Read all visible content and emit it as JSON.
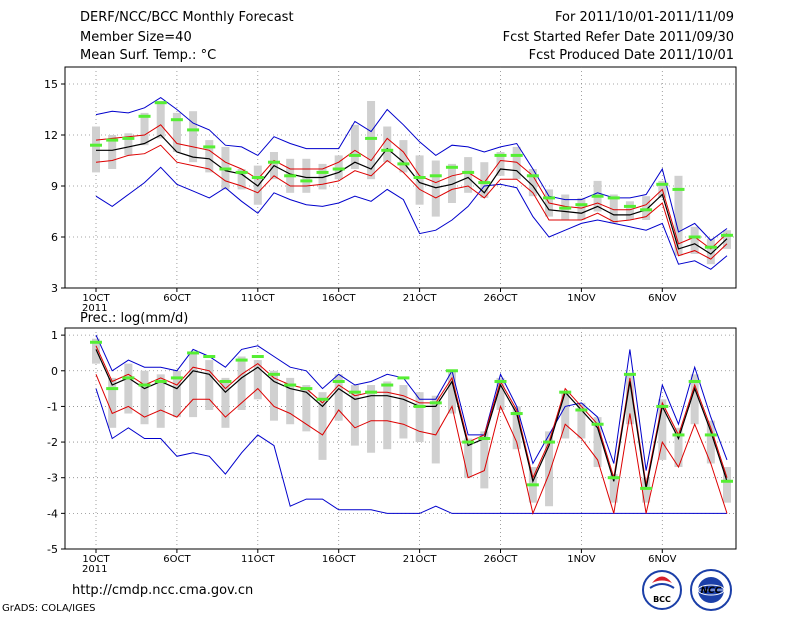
{
  "header": {
    "title": "DERF/NCC/BCC Monthly Forecast",
    "member_size": "Member Size=40",
    "variable": "Mean Surf. Temp.: °C",
    "period": "For 2011/10/01-2011/11/09",
    "started": "Fcst Started Refer Date 2011/09/30",
    "produced": "Fcst Produced Date 2011/10/01"
  },
  "footer": {
    "url": "http://cmdp.ncc.cma.gov.cn",
    "grads": "GrADS: COLA/IGES",
    "bcc_logo": "BCC",
    "ncc_logo": "NCC"
  },
  "colors": {
    "box": "#d0d0d0",
    "median": "#55ee33",
    "envelope": "#0000cc",
    "band": "#dd0000",
    "mean": "#000000"
  },
  "chart_data": [
    {
      "type": "line",
      "name": "temperature",
      "title": "",
      "ylabel": "Mean Surf. Temp.: °C",
      "ylim": [
        3,
        16
      ],
      "yticks": [
        3,
        6,
        9,
        12,
        15
      ],
      "x_days": [
        1,
        2,
        3,
        4,
        5,
        6,
        7,
        8,
        9,
        10,
        11,
        12,
        13,
        14,
        15,
        16,
        17,
        18,
        19,
        20,
        21,
        22,
        23,
        24,
        25,
        26,
        27,
        28,
        29,
        30,
        31,
        32,
        33,
        34,
        35,
        36,
        37,
        38,
        39,
        40
      ],
      "xticks": [
        {
          "day": 1,
          "label": "1OCT",
          "sub": "2011"
        },
        {
          "day": 6,
          "label": "6OCT"
        },
        {
          "day": 11,
          "label": "11OCT"
        },
        {
          "day": 16,
          "label": "16OCT"
        },
        {
          "day": 21,
          "label": "21OCT"
        },
        {
          "day": 26,
          "label": "26OCT"
        },
        {
          "day": 31,
          "label": "1NOV"
        },
        {
          "day": 36,
          "label": "6NOV"
        }
      ],
      "series": [
        {
          "name": "max",
          "values": [
            8.4,
            7.8,
            8.5,
            9.2,
            10.1,
            9.1,
            8.7,
            8.3,
            8.9,
            8.1,
            7.4,
            8.6,
            8.2,
            7.9,
            7.8,
            8.0,
            8.4,
            8.1,
            8.8,
            8.2,
            6.2,
            6.4,
            7.0,
            7.8,
            9.0,
            9.1,
            8.9,
            7.2,
            6.0,
            6.4,
            6.8,
            7.0,
            6.8,
            6.6,
            6.4,
            6.8,
            4.4,
            4.6,
            4.1,
            4.9
          ]
        },
        {
          "name": "p_high",
          "values": [
            13.2,
            13.4,
            13.3,
            13.6,
            14.2,
            13.5,
            12.7,
            12.3,
            11.4,
            11.3,
            10.8,
            11.9,
            11.5,
            11.2,
            11.2,
            11.2,
            12.8,
            12.2,
            13.5,
            12.6,
            11.6,
            10.8,
            11.4,
            11.3,
            11.0,
            11.3,
            11.5,
            10.0,
            8.4,
            8.2,
            8.2,
            8.6,
            8.3,
            8.3,
            8.5,
            10.0,
            6.3,
            6.8,
            5.8,
            6.5
          ]
        },
        {
          "name": "band_upper",
          "values": [
            11.7,
            11.8,
            11.9,
            12.0,
            12.6,
            11.5,
            11.3,
            11.1,
            10.4,
            10.0,
            9.4,
            10.5,
            10.0,
            10.0,
            10.0,
            10.4,
            11.1,
            10.5,
            11.8,
            11.0,
            9.6,
            9.2,
            9.6,
            9.8,
            9.2,
            10.5,
            10.4,
            9.6,
            8.0,
            7.8,
            7.7,
            8.0,
            7.6,
            7.6,
            7.9,
            8.8,
            5.6,
            6.0,
            5.3,
            6.2
          ]
        },
        {
          "name": "mean",
          "values": [
            11.1,
            11.1,
            11.3,
            11.5,
            12.0,
            11.0,
            10.7,
            10.6,
            9.9,
            9.7,
            9.0,
            10.2,
            9.7,
            9.5,
            9.5,
            9.8,
            10.4,
            10.0,
            11.2,
            10.4,
            9.2,
            8.9,
            9.1,
            9.5,
            8.6,
            10.0,
            9.9,
            9.0,
            7.6,
            7.5,
            7.4,
            7.8,
            7.3,
            7.3,
            7.6,
            8.5,
            5.3,
            5.6,
            5.0,
            5.9
          ]
        },
        {
          "name": "band_lower",
          "values": [
            10.4,
            10.5,
            10.8,
            10.9,
            11.4,
            10.4,
            10.2,
            10.0,
            9.3,
            9.0,
            8.6,
            9.6,
            9.0,
            9.0,
            9.1,
            9.3,
            9.9,
            9.6,
            10.5,
            9.8,
            8.8,
            8.3,
            8.8,
            9.0,
            8.3,
            9.4,
            9.4,
            8.6,
            7.0,
            7.0,
            7.0,
            7.4,
            6.9,
            7.0,
            7.2,
            8.0,
            4.9,
            5.2,
            4.7,
            5.6
          ]
        },
        {
          "name": "min",
          "values": [
            8.4,
            7.8,
            8.5,
            9.2,
            10.1,
            9.1,
            8.7,
            8.3,
            8.9,
            8.1,
            7.4,
            8.6,
            8.2,
            7.9,
            7.8,
            8.0,
            8.4,
            8.1,
            8.8,
            8.2,
            6.2,
            6.4,
            7.0,
            7.8,
            9.0,
            9.1,
            8.9,
            7.2,
            6.0,
            6.4,
            6.8,
            7.0,
            6.8,
            6.6,
            6.4,
            6.8,
            4.4,
            4.6,
            4.1,
            4.9
          ]
        },
        {
          "name": "median",
          "values": [
            11.4,
            11.7,
            11.8,
            13.1,
            13.9,
            12.9,
            12.3,
            11.3,
            10.0,
            9.8,
            9.5,
            10.4,
            9.6,
            9.3,
            9.8,
            10.0,
            10.8,
            11.8,
            11.1,
            10.3,
            9.5,
            9.6,
            10.1,
            9.8,
            9.2,
            10.8,
            10.8,
            9.6,
            8.3,
            7.7,
            7.9,
            8.4,
            8.3,
            7.8,
            7.6,
            9.1,
            8.8,
            6.0,
            5.4,
            6.1
          ]
        },
        {
          "name": "box_low",
          "values": [
            9.8,
            10.0,
            10.8,
            11.4,
            11.8,
            11.0,
            10.4,
            9.8,
            8.8,
            8.8,
            7.9,
            9.4,
            8.6,
            8.6,
            8.8,
            9.4,
            10.0,
            9.4,
            10.4,
            9.8,
            7.9,
            7.2,
            8.0,
            8.6,
            8.3,
            9.6,
            9.4,
            8.4,
            7.2,
            7.0,
            7.0,
            7.5,
            6.8,
            7.0,
            7.0,
            8.3,
            4.9,
            5.0,
            4.4,
            5.3
          ]
        },
        {
          "name": "box_high",
          "values": [
            12.5,
            12.0,
            12.1,
            13.3,
            14.0,
            13.3,
            13.4,
            11.7,
            11.3,
            10.0,
            10.2,
            11.0,
            10.6,
            10.6,
            10.3,
            10.8,
            12.6,
            14.0,
            12.5,
            11.7,
            10.8,
            10.5,
            10.3,
            10.7,
            10.4,
            11.0,
            11.3,
            10.0,
            8.8,
            8.5,
            8.3,
            9.3,
            8.5,
            8.1,
            8.4,
            9.3,
            9.6,
            6.6,
            5.9,
            6.4
          ]
        }
      ]
    },
    {
      "type": "line",
      "name": "precipitation",
      "title": "Prec.: log(mm/d)",
      "ylabel": "Prec.: log(mm/d)",
      "ylim": [
        -5,
        1.2
      ],
      "yticks": [
        -5,
        -4,
        -3,
        -2,
        -1,
        0,
        1
      ],
      "x_days": [
        1,
        2,
        3,
        4,
        5,
        6,
        7,
        8,
        9,
        10,
        11,
        12,
        13,
        14,
        15,
        16,
        17,
        18,
        19,
        20,
        21,
        22,
        23,
        24,
        25,
        26,
        27,
        28,
        29,
        30,
        31,
        32,
        33,
        34,
        35,
        36,
        37,
        38,
        39,
        40
      ],
      "xticks": [
        {
          "day": 1,
          "label": "1OCT",
          "sub": "2011"
        },
        {
          "day": 6,
          "label": "6OCT"
        },
        {
          "day": 11,
          "label": "11OCT"
        },
        {
          "day": 16,
          "label": "16OCT"
        },
        {
          "day": 21,
          "label": "21OCT"
        },
        {
          "day": 26,
          "label": "26OCT"
        },
        {
          "day": 31,
          "label": "1NOV"
        },
        {
          "day": 36,
          "label": "6NOV"
        }
      ],
      "series": [
        {
          "name": "max",
          "values": [
            -0.5,
            -1.9,
            -1.6,
            -1.9,
            -1.9,
            -2.4,
            -2.3,
            -2.4,
            -2.9,
            -2.3,
            -1.8,
            -2.1,
            -3.8,
            -3.6,
            -3.6,
            -3.9,
            -3.9,
            -3.9,
            -4.0,
            -4.0,
            -4.0,
            -3.8,
            -4.0,
            -4.0,
            -4.0,
            -4.0,
            -4.0,
            -4.0,
            -4.0,
            -4.0,
            -4.0,
            -4.0,
            -4.0,
            -4.0,
            -4.0,
            -4.0,
            -4.0,
            -4.0,
            -4.0,
            -4.0
          ]
        },
        {
          "name": "p_high",
          "values": [
            1.0,
            0.0,
            0.3,
            0.1,
            0.1,
            0.0,
            0.6,
            0.4,
            0.1,
            0.6,
            0.7,
            0.4,
            0.1,
            0.0,
            -0.5,
            -0.1,
            -0.4,
            -0.3,
            -0.1,
            -0.2,
            -0.8,
            -0.8,
            0.0,
            -1.8,
            -1.8,
            -0.1,
            -1.0,
            -2.6,
            -1.8,
            -1.0,
            -0.9,
            -1.3,
            -2.6,
            0.6,
            -2.8,
            -0.4,
            -1.5,
            0.1,
            -1.3,
            -2.5
          ]
        },
        {
          "name": "band_upper",
          "values": [
            0.7,
            -0.3,
            -0.1,
            -0.4,
            -0.2,
            -0.4,
            0.1,
            0.0,
            -0.5,
            -0.1,
            0.2,
            -0.2,
            -0.4,
            -0.5,
            -0.9,
            -0.4,
            -0.7,
            -0.6,
            -0.6,
            -0.7,
            -0.9,
            -0.9,
            -0.2,
            -2.0,
            -1.8,
            -0.3,
            -1.1,
            -3.0,
            -2.0,
            -0.5,
            -1.0,
            -1.5,
            -3.0,
            -0.2,
            -3.2,
            -0.9,
            -1.8,
            -0.4,
            -1.6,
            -3.0
          ]
        },
        {
          "name": "mean",
          "values": [
            0.6,
            -0.4,
            -0.2,
            -0.5,
            -0.3,
            -0.5,
            0.0,
            -0.1,
            -0.6,
            -0.2,
            0.1,
            -0.3,
            -0.5,
            -0.6,
            -1.0,
            -0.5,
            -0.8,
            -0.7,
            -0.7,
            -0.8,
            -1.0,
            -1.0,
            -0.3,
            -2.1,
            -1.9,
            -0.4,
            -1.2,
            -3.1,
            -2.1,
            -0.6,
            -1.1,
            -1.6,
            -3.1,
            -0.3,
            -3.3,
            -1.0,
            -1.9,
            -0.5,
            -1.7,
            -3.1
          ]
        },
        {
          "name": "band_lower",
          "values": [
            -0.1,
            -1.2,
            -1.0,
            -1.3,
            -1.1,
            -1.3,
            -0.8,
            -0.8,
            -1.3,
            -0.9,
            -0.5,
            -1.0,
            -1.2,
            -1.5,
            -1.8,
            -1.1,
            -1.6,
            -1.4,
            -1.4,
            -1.5,
            -1.7,
            -1.8,
            -1.0,
            -3.0,
            -2.8,
            -1.0,
            -2.0,
            -4.0,
            -2.9,
            -1.5,
            -1.9,
            -2.5,
            -4.0,
            -1.2,
            -4.0,
            -2.0,
            -2.7,
            -1.5,
            -2.6,
            -4.0
          ]
        },
        {
          "name": "min",
          "values": [
            -0.5,
            -1.9,
            -1.6,
            -1.9,
            -1.9,
            -2.4,
            -2.3,
            -2.4,
            -2.9,
            -2.3,
            -1.8,
            -2.1,
            -3.8,
            -3.6,
            -3.6,
            -3.9,
            -3.9,
            -3.9,
            -4.0,
            -4.0,
            -4.0,
            -3.8,
            -4.0,
            -4.0,
            -4.0,
            -4.0,
            -4.0,
            -4.0,
            -4.0,
            -4.0,
            -4.0,
            -4.0,
            -4.0,
            -4.0,
            -4.0,
            -4.0,
            -4.0,
            -4.0,
            -4.0,
            -4.0
          ]
        },
        {
          "name": "median",
          "values": [
            0.8,
            -0.5,
            -0.2,
            -0.4,
            -0.3,
            -0.2,
            0.5,
            0.4,
            -0.3,
            0.3,
            0.4,
            -0.1,
            -0.4,
            -0.5,
            -0.8,
            -0.3,
            -0.6,
            -0.6,
            -0.4,
            -0.2,
            -1.0,
            -0.9,
            0.0,
            -2.0,
            -1.9,
            -0.3,
            -1.2,
            -3.2,
            -2.0,
            -0.6,
            -1.1,
            -1.5,
            -3.0,
            -0.1,
            -3.3,
            -1.0,
            -1.8,
            -0.3,
            -1.8,
            -3.1
          ]
        },
        {
          "name": "box_low",
          "values": [
            0.2,
            -1.6,
            -1.2,
            -1.5,
            -1.6,
            -1.3,
            -1.3,
            -1.1,
            -1.6,
            -1.1,
            -0.8,
            -1.4,
            -1.5,
            -1.7,
            -2.5,
            -1.4,
            -2.1,
            -2.3,
            -2.2,
            -1.9,
            -2.0,
            -2.6,
            -1.2,
            -3.0,
            -3.3,
            -1.1,
            -2.2,
            -3.7,
            -3.8,
            -1.9,
            -1.9,
            -2.7,
            -3.7,
            -1.5,
            -3.7,
            -2.5,
            -2.7,
            -1.5,
            -2.6,
            -3.7
          ]
        },
        {
          "name": "box_high",
          "values": [
            0.9,
            -0.2,
            0.2,
            0.0,
            -0.1,
            0.0,
            0.5,
            0.3,
            -0.2,
            0.4,
            0.3,
            0.0,
            -0.2,
            -0.4,
            -0.6,
            -0.1,
            -0.4,
            -0.4,
            -0.3,
            -0.4,
            -0.6,
            -0.7,
            0.0,
            -1.9,
            -1.7,
            -0.2,
            -1.0,
            -2.7,
            -1.7,
            -0.6,
            -0.9,
            -1.3,
            -2.9,
            -0.1,
            -3.0,
            -0.8,
            -1.6,
            -0.1,
            -1.4,
            -2.7
          ]
        }
      ]
    }
  ]
}
